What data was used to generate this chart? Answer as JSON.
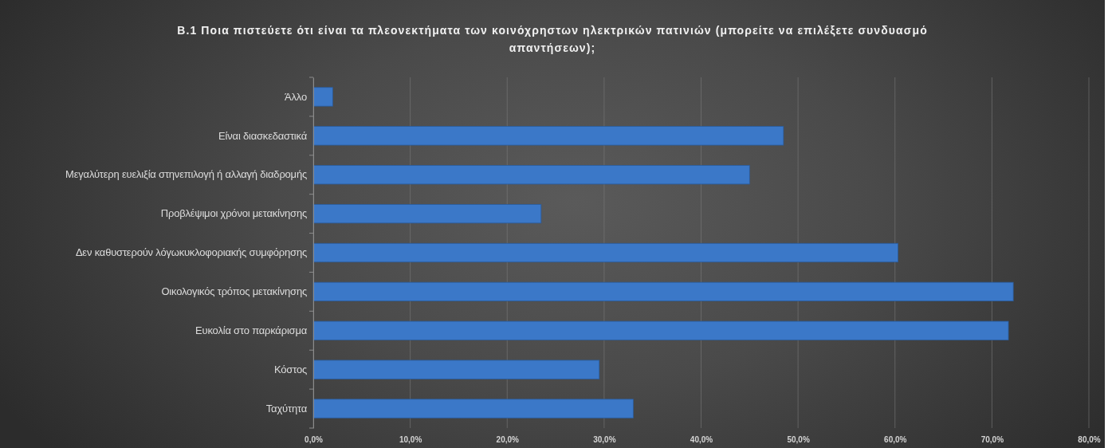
{
  "chart_data": {
    "type": "bar",
    "orientation": "horizontal",
    "title": "Β.1 Ποια πιστεύετε ότι είναι τα πλεονεκτήματα των κοινόχρηστων ηλεκτρικών πατινιών (μπορείτε να επιλέξετε συνδυασμό απαντήσεων);",
    "categories": [
      "Άλλο",
      "Είναι διασκεδαστικά",
      "Μεγαλύτερη ευελιξία στηνεπιλογή ή αλλαγή διαδρομής",
      "Προβλέψιμοι χρόνοι μετακίνησης",
      "Δεν καθυστερούν λόγωκυκλοφοριακής συμφόρησης",
      "Οικολογικός τρόπος μετακίνησης",
      "Ευκολία στο παρκάρισμα",
      "Κόστος",
      "Ταχύτητα"
    ],
    "values": [
      2.0,
      48.5,
      45.0,
      23.5,
      60.3,
      72.2,
      71.7,
      29.5,
      33.0
    ],
    "color": "#3b78c8",
    "xlim": [
      0,
      80
    ],
    "xticks": [
      {
        "value": 0,
        "label": "0,0%"
      },
      {
        "value": 10,
        "label": "10,0%"
      },
      {
        "value": 20,
        "label": "20,0%"
      },
      {
        "value": 30,
        "label": "30,0%"
      },
      {
        "value": 40,
        "label": "40,0%"
      },
      {
        "value": 50,
        "label": "50,0%"
      },
      {
        "value": 60,
        "label": "60,0%"
      },
      {
        "value": 70,
        "label": "70,0%"
      },
      {
        "value": 80,
        "label": "80,0%"
      }
    ],
    "grid": "x"
  }
}
